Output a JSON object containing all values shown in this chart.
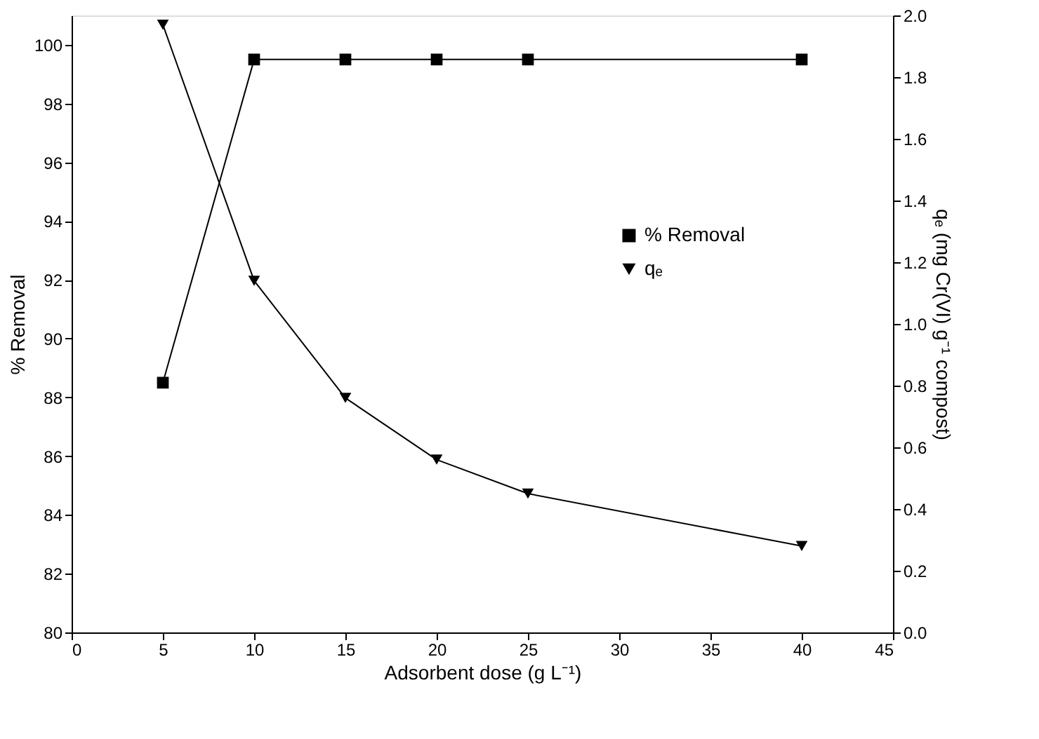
{
  "chart_data": {
    "type": "line",
    "xlabel": "Adsorbent dose (g L⁻¹)",
    "ylabel": "% Removal",
    "y2label": "qₑ (mg Cr(VI) g⁻¹ compost)",
    "x": [
      5,
      10,
      15,
      20,
      25,
      40
    ],
    "series": [
      {
        "name": "% Removal",
        "color": "#000000",
        "marker": "square",
        "values": [
          88.5,
          99.5,
          99.5,
          99.5,
          99.5,
          99.5
        ]
      },
      {
        "name": "qₑ",
        "color": "#000000",
        "marker": "triangle",
        "axis": "y2",
        "values": [
          1.97,
          1.14,
          0.76,
          0.56,
          0.45,
          0.28
        ]
      }
    ],
    "xlim": [
      0,
      45
    ],
    "xticks": [
      0,
      5,
      10,
      15,
      20,
      25,
      30,
      35,
      40,
      45
    ],
    "ylim": [
      80,
      101
    ],
    "yticks": [
      80,
      82,
      84,
      86,
      88,
      90,
      92,
      94,
      96,
      98,
      100
    ],
    "y2lim": [
      0,
      2
    ],
    "y2ticks": [
      {
        "value": 0,
        "label": "0.0"
      },
      0.2,
      0.4,
      0.6,
      0.8,
      {
        "value": 1,
        "label": "1.0"
      },
      1.2,
      1.4,
      1.6,
      1.8,
      {
        "value": 2,
        "label": "2.0"
      }
    ],
    "grid": false,
    "legend": "right",
    "line_style": "solid"
  }
}
